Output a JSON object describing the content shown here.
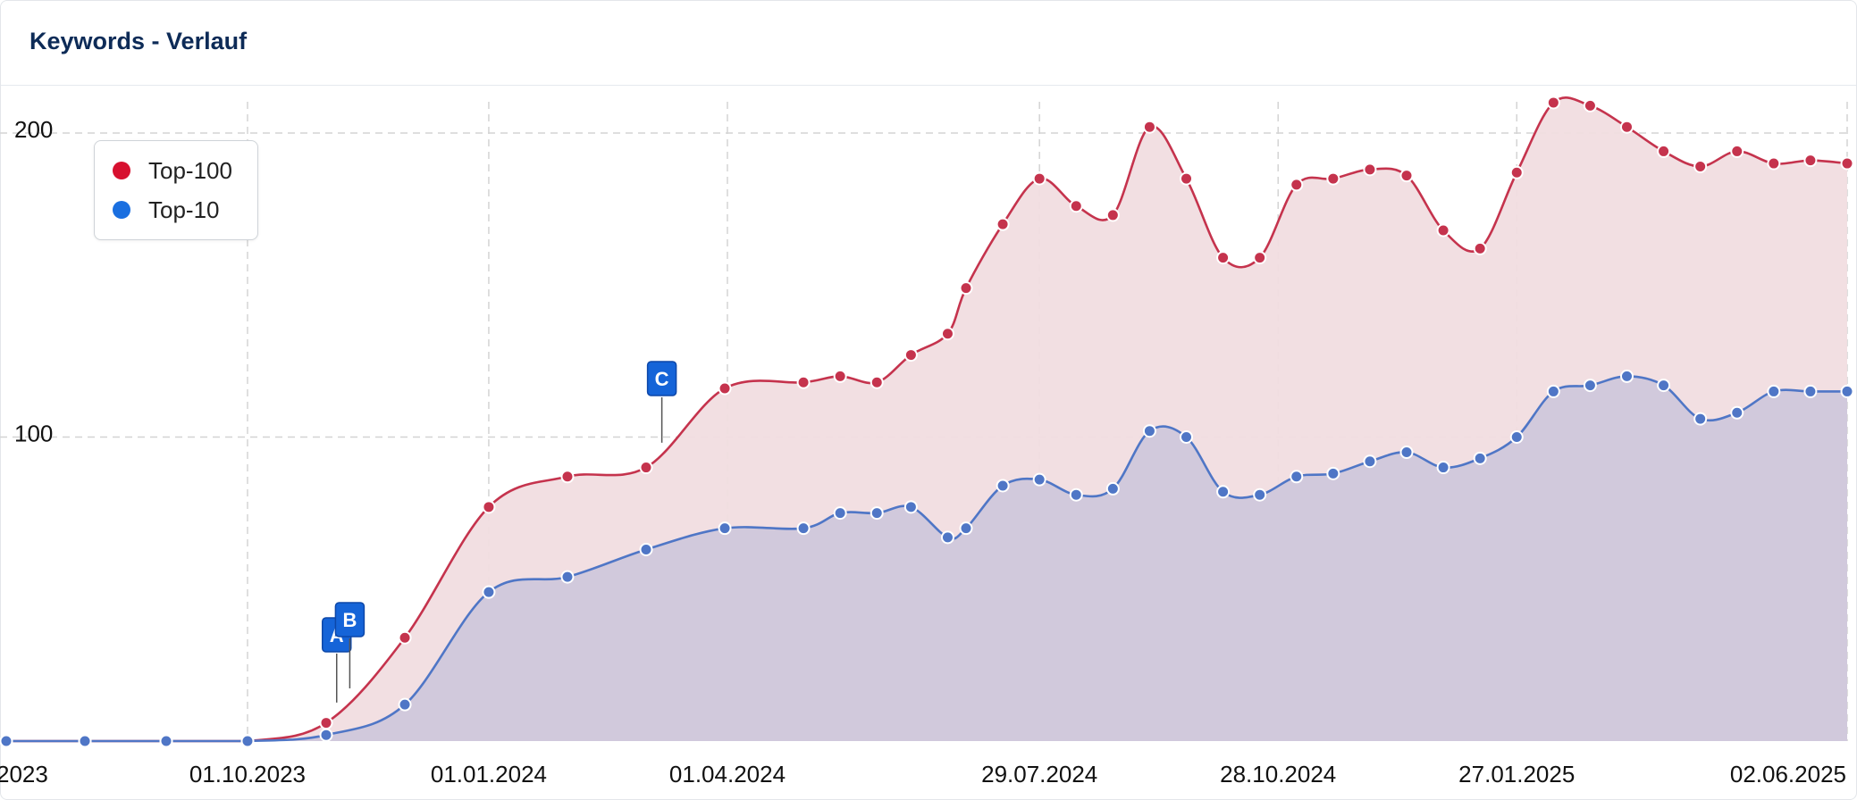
{
  "header": {
    "title": "Keywords - Verlauf"
  },
  "legend": {
    "items": [
      {
        "label": "Top-100",
        "color": "#d7102f"
      },
      {
        "label": "Top-10",
        "color": "#1a6fe0"
      }
    ]
  },
  "colors": {
    "top100_line": "#c5334d",
    "top100_fill": "#f1dde0",
    "top10_line": "#4f76c6",
    "top10_fill": "#cfc7db",
    "marker_bg": "#1564d8",
    "grid": "#d4d4d4"
  },
  "chart_data": {
    "type": "area",
    "title": "Keywords - Verlauf",
    "xlabel": "",
    "ylabel": "",
    "ylim": [
      0,
      200
    ],
    "yticks": [
      100,
      200
    ],
    "xtick_labels": [
      {
        "date": "2023-07-01",
        "label": "2023"
      },
      {
        "date": "2023-10-01",
        "label": "01.10.2023"
      },
      {
        "date": "2024-01-01",
        "label": "01.01.2024"
      },
      {
        "date": "2024-04-01",
        "label": "01.04.2024"
      },
      {
        "date": "2024-07-29",
        "label": "29.07.2024"
      },
      {
        "date": "2024-10-28",
        "label": "28.10.2024"
      },
      {
        "date": "2025-01-27",
        "label": "27.01.2025"
      },
      {
        "date": "2025-06-02",
        "label": "02.06.2025"
      }
    ],
    "grid": true,
    "legend_position": "top-left",
    "annotations": [
      {
        "label": "A",
        "date": "2023-11-04"
      },
      {
        "label": "B",
        "date": "2023-11-09"
      },
      {
        "label": "C",
        "date": "2024-03-07"
      }
    ],
    "x": [
      "2023-07-01",
      "2023-07-31",
      "2023-08-31",
      "2023-10-01",
      "2023-10-31",
      "2023-11-30",
      "2024-01-01",
      "2024-01-31",
      "2024-03-01",
      "2024-03-31",
      "2024-04-30",
      "2024-05-14",
      "2024-05-28",
      "2024-06-10",
      "2024-06-24",
      "2024-07-01",
      "2024-07-15",
      "2024-07-29",
      "2024-08-12",
      "2024-08-26",
      "2024-09-09",
      "2024-09-23",
      "2024-10-07",
      "2024-10-21",
      "2024-11-04",
      "2024-11-18",
      "2024-12-02",
      "2024-12-16",
      "2024-12-30",
      "2025-01-13",
      "2025-01-27",
      "2025-02-10",
      "2025-02-24",
      "2025-03-10",
      "2025-03-24",
      "2025-04-07",
      "2025-04-21",
      "2025-05-05",
      "2025-05-19",
      "2025-06-02"
    ],
    "series": [
      {
        "name": "Top-100",
        "values": [
          0,
          0,
          0,
          0,
          6,
          34,
          77,
          87,
          90,
          116,
          118,
          120,
          118,
          127,
          134,
          149,
          170,
          185,
          176,
          173,
          202,
          185,
          159,
          159,
          183,
          185,
          188,
          186,
          168,
          162,
          187,
          210,
          209,
          202,
          194,
          189,
          194,
          190,
          191,
          190
        ]
      },
      {
        "name": "Top-10",
        "values": [
          0,
          0,
          0,
          0,
          2,
          12,
          49,
          54,
          63,
          70,
          70,
          75,
          75,
          77,
          67,
          70,
          84,
          86,
          81,
          83,
          102,
          100,
          82,
          81,
          87,
          88,
          92,
          95,
          90,
          93,
          100,
          115,
          117,
          120,
          117,
          106,
          108,
          115,
          115,
          115
        ]
      }
    ]
  }
}
